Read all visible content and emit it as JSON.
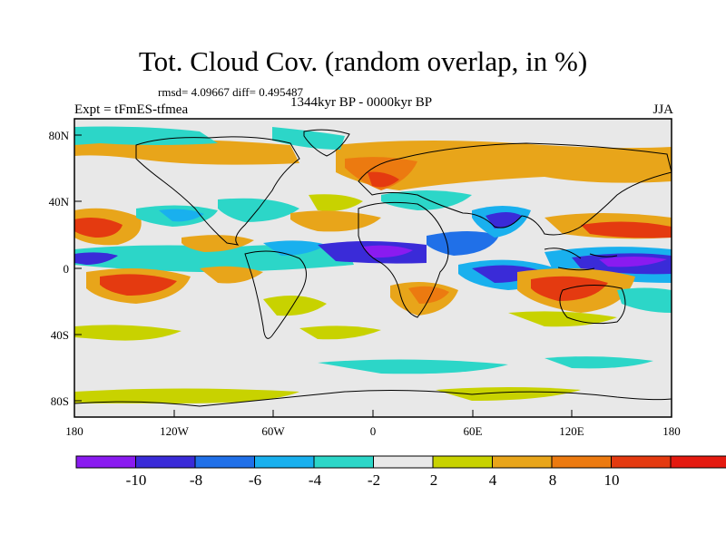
{
  "title": "Tot. Cloud Cov. (random overlap, in %)",
  "stats": "rmsd= 4.09667 diff= 0.495487",
  "experiment": "Expt = tFmES-tfmea",
  "period": "1344kyr BP - 0000kyr BP",
  "season": "JJA",
  "lat_ticks": [
    "80N",
    "40N",
    "0",
    "40S",
    "80S"
  ],
  "lon_ticks": [
    "180",
    "120W",
    "60W",
    "0",
    "60E",
    "120E",
    "180"
  ],
  "colorbar": {
    "labels": [
      "-10",
      "-8",
      "-6",
      "-4",
      "-2",
      "2",
      "4",
      "8",
      "10"
    ],
    "colors": [
      "#8a1bf0",
      "#3a2bd8",
      "#2070e8",
      "#19b0ee",
      "#2cd6c8",
      "#e8e8e8",
      "#c8d200",
      "#e8a51a",
      "#ec7a10",
      "#e43a10",
      "#e41a10"
    ]
  }
}
